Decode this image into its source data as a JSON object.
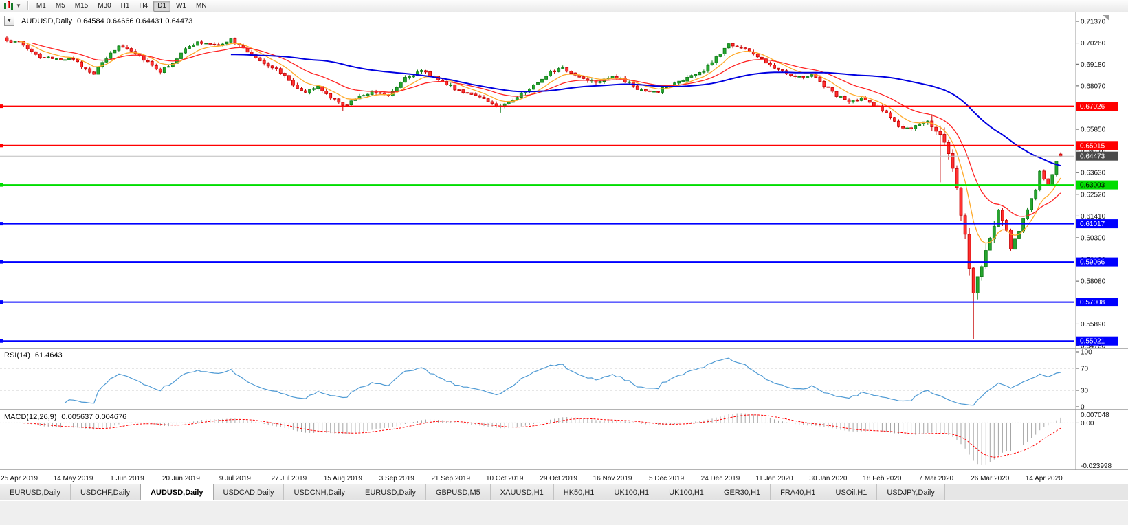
{
  "toolbar": {
    "timeframes": [
      "M1",
      "M5",
      "M15",
      "M30",
      "H1",
      "H4",
      "D1",
      "W1",
      "MN"
    ],
    "active_timeframe": "D1",
    "chart_type_icon": "candlestick-chart-icon",
    "caret_icon": "chevron-down-icon"
  },
  "chart_data": {
    "type": "candlestick",
    "symbol": "AUDUSD",
    "timeframe": "Daily",
    "title_symbol": "AUDUSD,Daily",
    "title_ohlc": "0.64584 0.64666 0.64431 0.64473",
    "ohlc_last": {
      "open": 0.64584,
      "high": 0.64666,
      "low": 0.64431,
      "close": 0.64473
    },
    "num_candles": 255,
    "price_range_visible": [
      0.54675,
      0.71827
    ],
    "price_axis_labels": [
      "0.71370",
      "0.70260",
      "0.69180",
      "0.68070",
      "0.66990",
      "0.65850",
      "0.64770",
      "0.63630",
      "0.62520",
      "0.61410",
      "0.60300",
      "0.59190",
      "0.58080",
      "0.56970",
      "0.55890",
      "0.54780"
    ],
    "hlines": [
      {
        "price": 0.67026,
        "label": "0.67026",
        "color": "#FF0000",
        "text_color": "#FFFFFF"
      },
      {
        "price": 0.65015,
        "label": "0.65015",
        "color": "#FF0000",
        "text_color": "#FFFFFF"
      },
      {
        "price": 0.63003,
        "label": "0.63003",
        "color": "#00DD00",
        "text_color": "#000000"
      },
      {
        "price": 0.61017,
        "label": "0.61017",
        "color": "#0000FF",
        "text_color": "#FFFFFF"
      },
      {
        "price": 0.59066,
        "label": "0.59066",
        "color": "#0000FF",
        "text_color": "#FFFFFF"
      },
      {
        "price": 0.57008,
        "label": "0.57008",
        "color": "#0000FF",
        "text_color": "#FFFFFF"
      },
      {
        "price": 0.55021,
        "label": "0.55021",
        "color": "#0000FF",
        "text_color": "#FFFFFF"
      }
    ],
    "bid": {
      "price": 0.64473,
      "label": "0.64473"
    },
    "anchors": [
      [
        0,
        0.703
      ],
      [
        2,
        0.7042
      ],
      [
        5,
        0.6998
      ],
      [
        8,
        0.6955
      ],
      [
        12,
        0.6938
      ],
      [
        15,
        0.6952
      ],
      [
        18,
        0.6908
      ],
      [
        21,
        0.6872
      ],
      [
        24,
        0.6948
      ],
      [
        27,
        0.7012
      ],
      [
        30,
        0.6992
      ],
      [
        34,
        0.693
      ],
      [
        37,
        0.6882
      ],
      [
        40,
        0.6928
      ],
      [
        43,
        0.6992
      ],
      [
        46,
        0.703
      ],
      [
        50,
        0.7012
      ],
      [
        54,
        0.7042
      ],
      [
        57,
        0.6998
      ],
      [
        60,
        0.6952
      ],
      [
        63,
        0.6915
      ],
      [
        66,
        0.6878
      ],
      [
        69,
        0.6812
      ],
      [
        72,
        0.6778
      ],
      [
        75,
        0.68
      ],
      [
        78,
        0.6748
      ],
      [
        81,
        0.6705
      ],
      [
        84,
        0.6738
      ],
      [
        88,
        0.6782
      ],
      [
        92,
        0.676
      ],
      [
        96,
        0.6852
      ],
      [
        100,
        0.688
      ],
      [
        104,
        0.6845
      ],
      [
        108,
        0.679
      ],
      [
        112,
        0.6768
      ],
      [
        116,
        0.6722
      ],
      [
        119,
        0.6702
      ],
      [
        123,
        0.6752
      ],
      [
        127,
        0.6808
      ],
      [
        131,
        0.6882
      ],
      [
        134,
        0.6895
      ],
      [
        138,
        0.6852
      ],
      [
        142,
        0.683
      ],
      [
        146,
        0.6858
      ],
      [
        150,
        0.682
      ],
      [
        153,
        0.6782
      ],
      [
        156,
        0.6772
      ],
      [
        160,
        0.6812
      ],
      [
        164,
        0.6848
      ],
      [
        168,
        0.6882
      ],
      [
        171,
        0.6952
      ],
      [
        174,
        0.7022
      ],
      [
        176,
        0.7008
      ],
      [
        179,
        0.6985
      ],
      [
        182,
        0.694
      ],
      [
        185,
        0.6905
      ],
      [
        188,
        0.6875
      ],
      [
        191,
        0.685
      ],
      [
        194,
        0.6865
      ],
      [
        197,
        0.681
      ],
      [
        200,
        0.676
      ],
      [
        203,
        0.6722
      ],
      [
        206,
        0.674
      ],
      [
        209,
        0.6712
      ],
      [
        212,
        0.6668
      ],
      [
        215,
        0.66
      ],
      [
        218,
        0.658
      ],
      [
        221,
        0.663
      ],
      [
        223,
        0.6618
      ],
      [
        225,
        0.656
      ],
      [
        227,
        0.645
      ],
      [
        229,
        0.628
      ],
      [
        231,
        0.603
      ],
      [
        233,
        0.574
      ],
      [
        234,
        0.582
      ],
      [
        236,
        0.596
      ],
      [
        238,
        0.608
      ],
      [
        239,
        0.617
      ],
      [
        241,
        0.605
      ],
      [
        242,
        0.5985
      ],
      [
        244,
        0.607
      ],
      [
        246,
        0.618
      ],
      [
        248,
        0.628
      ],
      [
        249,
        0.636
      ],
      [
        251,
        0.629
      ],
      [
        252,
        0.636
      ],
      [
        253,
        0.6415
      ],
      [
        254,
        0.64473
      ]
    ],
    "spikes": {
      "81": 0.6677,
      "119": 0.667,
      "225": 0.6313,
      "233": 0.551
    },
    "moving_averages": [
      {
        "name": "fast",
        "period": 8,
        "method": "ema",
        "color": "#FFA928"
      },
      {
        "name": "mid",
        "period": 20,
        "method": "ema",
        "color": "#FF2222"
      },
      {
        "name": "slow",
        "period": 55,
        "method": "sma",
        "color": "#0000E0"
      }
    ],
    "date_labels": [
      "25 Apr 2019",
      "14 May 2019",
      "1 Jun 2019",
      "20 Jun 2019",
      "9 Jul 2019",
      "27 Jul 2019",
      "15 Aug 2019",
      "3 Sep 2019",
      "21 Sep 2019",
      "10 Oct 2019",
      "29 Oct 2019",
      "16 Nov 2019",
      "5 Dec 2019",
      "24 Dec 2019",
      "11 Jan 2020",
      "30 Jan 2020",
      "18 Feb 2020",
      "7 Mar 2020",
      "26 Mar 2020",
      "14 Apr 2020"
    ],
    "rsi": {
      "label": "RSI(14)",
      "value": "61.4643",
      "axis": [
        "100",
        "70",
        "30",
        "0"
      ],
      "levels": [
        70,
        30
      ]
    },
    "macd": {
      "label": "MACD(12,26,9)",
      "values": "0.005637 0.004676",
      "axis_top": "0.007048",
      "axis_zero": "0.00",
      "axis_bottom": "-0.023998"
    },
    "colors": {
      "up": "#26A62E",
      "up_border": "#0E7A16",
      "down": "#FF3030",
      "down_border": "#C40000",
      "ma_fast": "#FFA928",
      "ma_mid": "#FF2222",
      "ma_slow": "#0000E0",
      "rsi": "#4E9AD4",
      "macd_hist": "#A6A6A6",
      "macd_signal": "#FF0000"
    }
  },
  "tabs": {
    "items": [
      "EURUSD,Daily",
      "USDCHF,Daily",
      "AUDUSD,Daily",
      "USDCAD,Daily",
      "USDCNH,Daily",
      "EURUSD,Daily",
      "GBPUSD,M5",
      "XAUUSD,H1",
      "HK50,H1",
      "UK100,H1",
      "UK100,H1",
      "GER30,H1",
      "FRA40,H1",
      "USOil,H1",
      "USDJPY,Daily"
    ],
    "active": "AUDUSD,Daily"
  }
}
